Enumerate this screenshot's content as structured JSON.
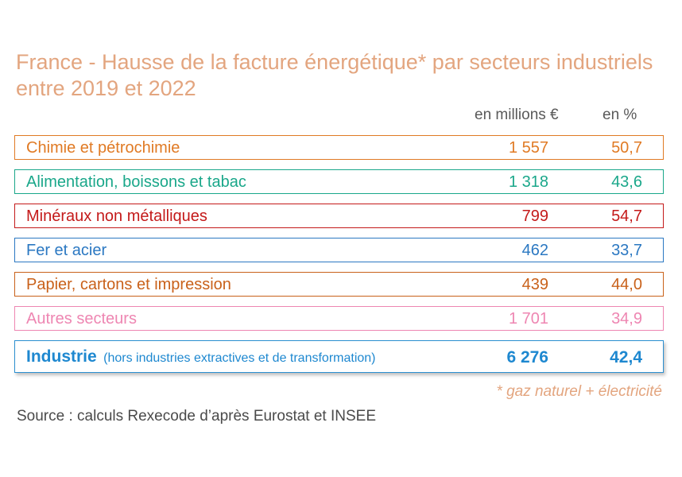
{
  "chart_data": {
    "type": "table",
    "title": "France - Hausse de la facture énergétique* par secteurs industriels entre 2019 et 2022",
    "columns": [
      "en millions €",
      "en %"
    ],
    "rows": [
      {
        "label": "Chimie et pétrochimie",
        "value": "1 557",
        "percent": "50,7",
        "color": "#e07a24"
      },
      {
        "label": "Alimentation, boissons et tabac",
        "value": "1 318",
        "percent": "43,6",
        "color": "#1aa78a"
      },
      {
        "label": "Minéraux non métalliques",
        "value": "799",
        "percent": "54,7",
        "color": "#c41a1a"
      },
      {
        "label": "Fer et acier",
        "value": "462",
        "percent": "33,7",
        "color": "#2b78c2"
      },
      {
        "label": "Papier, cartons et impression",
        "value": "439",
        "percent": "44,0",
        "color": "#c9611a"
      },
      {
        "label": "Autres secteurs",
        "value": "1 701",
        "percent": "34,9",
        "color": "#ee86b2"
      }
    ],
    "total": {
      "label": "Industrie",
      "sublabel": "(hors industries extractives et de transformation)",
      "value": "6 276",
      "percent": "42,4",
      "color": "#1e88d0"
    },
    "footnote": "* gaz naturel + électricité",
    "source": "Source : calculs Rexecode d’après Eurostat et INSEE"
  }
}
